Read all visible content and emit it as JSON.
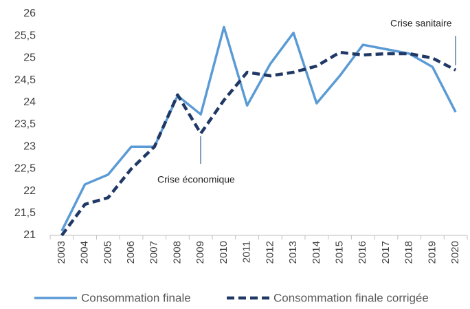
{
  "chart_data": {
    "type": "line",
    "categories": [
      "2003",
      "2004",
      "2005",
      "2006",
      "2007",
      "2008",
      "2009",
      "2010",
      "2011",
      "2012",
      "2013",
      "2014",
      "2015",
      "2016",
      "2017",
      "2018",
      "2019",
      "2020"
    ],
    "series": [
      {
        "name": "Consommation finale",
        "color": "#5b9bd5",
        "dash": false,
        "values": [
          21.1,
          22.15,
          22.37,
          23.0,
          23.0,
          24.15,
          23.73,
          25.7,
          23.93,
          24.87,
          25.57,
          23.98,
          24.6,
          25.3,
          25.2,
          25.1,
          24.8,
          23.78
        ]
      },
      {
        "name": "Consommation finale corrigée",
        "color": "#1f3864",
        "dash": true,
        "values": [
          21.0,
          21.7,
          21.85,
          22.5,
          23.0,
          24.17,
          23.3,
          24.05,
          24.68,
          24.6,
          24.68,
          24.82,
          25.13,
          25.07,
          25.1,
          25.1,
          25.0,
          24.73
        ]
      }
    ],
    "ylim": [
      21,
      26
    ],
    "yticks": [
      21,
      {
        "value": 21.5,
        "label": "21,5"
      },
      22,
      {
        "value": 22.5,
        "label": "22,5"
      },
      23,
      {
        "value": 23.5,
        "label": "23,5"
      },
      24,
      {
        "value": 24.5,
        "label": "24,5"
      },
      25,
      {
        "value": 25.5,
        "label": "25,5"
      },
      26
    ],
    "annotations": [
      "Crise économique",
      "Crise sanitaire"
    ],
    "grid": false,
    "legend": "bottom"
  }
}
